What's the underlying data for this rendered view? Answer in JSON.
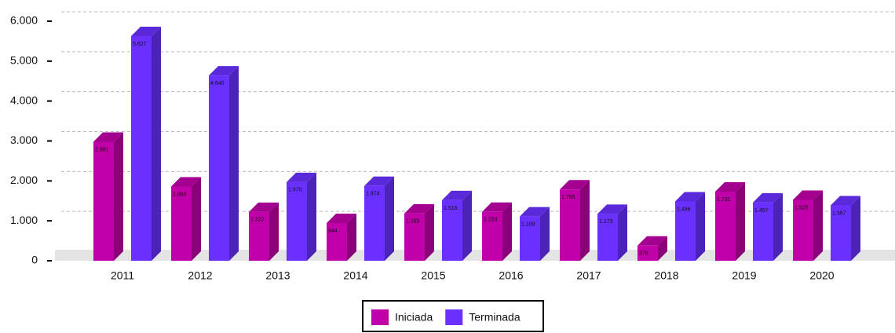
{
  "chart_data": {
    "type": "bar",
    "categories": [
      "2011",
      "2012",
      "2013",
      "2014",
      "2015",
      "2016",
      "2017",
      "2018",
      "2019",
      "2020"
    ],
    "series": [
      {
        "name": "Iniciada",
        "color": "#c000a8",
        "values": [
          2981,
          1860,
          1222,
          944,
          1183,
          1224,
          1785,
          378,
          1731,
          1525
        ],
        "value_labels": [
          "2.981",
          "1.860",
          "1.222",
          "944",
          "1.183",
          "1.224",
          "1.785",
          "378",
          "1.731",
          "1.525"
        ]
      },
      {
        "name": "Terminada",
        "color": "#6a30ff",
        "values": [
          5627,
          4640,
          1970,
          1874,
          1516,
          1109,
          1173,
          1486,
          1457,
          1387
        ],
        "value_labels": [
          "5.627",
          "4.640",
          "1.970",
          "1.874",
          "1.516",
          "1.109",
          "1.173",
          "1.486",
          "1.457",
          "1.387"
        ]
      }
    ],
    "ylim": [
      0,
      6000
    ],
    "yticks": [
      0,
      {
        "value": 1000,
        "label": "1.000"
      },
      {
        "value": 2000,
        "label": "2.000"
      },
      {
        "value": 3000,
        "label": "3.000"
      },
      {
        "value": 4000,
        "label": "4.000"
      },
      {
        "value": 5000,
        "label": "5.000"
      },
      {
        "value": 6000,
        "label": "6.000"
      }
    ],
    "grid": true,
    "legend": "bottom"
  }
}
